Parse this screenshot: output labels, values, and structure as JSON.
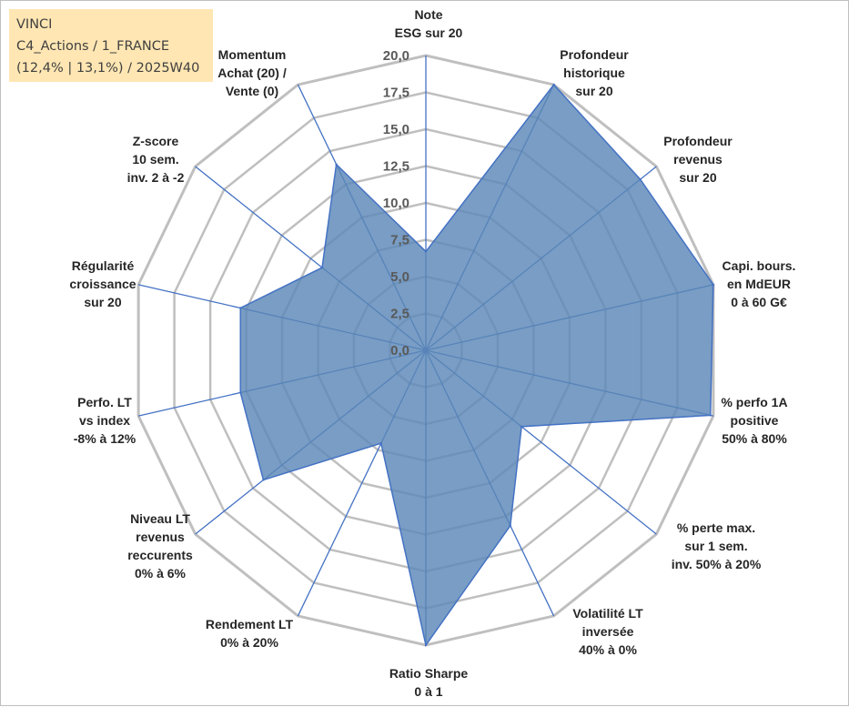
{
  "info_box": {
    "line1": "VINCI",
    "line2": "C4_Actions / 1_FRANCE",
    "line3": "(12,4% | 13,1%) / 2025W40"
  },
  "colors": {
    "fill": "#5b87b7",
    "stroke": "#4472c4",
    "grid": "#bfbfbf",
    "spoke": "#4472c4",
    "info_bg": "#ffe6b3"
  },
  "chart_data": {
    "type": "radar",
    "title": "",
    "rlim": [
      0,
      20
    ],
    "ticks": [
      "0,0",
      "2,5",
      "5,0",
      "7,5",
      "10,0",
      "12,5",
      "15,0",
      "17,5",
      "20,0"
    ],
    "grid": true,
    "categories": [
      "Note|ESG sur 20",
      "Profondeur|historique|sur 20",
      "Profondeur|revenus|sur 20",
      "Capi. bours.|en MdEUR|0 à 60 G€",
      "% perfo 1A|positive|50% à 80%",
      "% perte max.|sur 1 sem.|inv. 50% à 20%",
      "Volatilité LT|inversée|40% à 0%",
      "Ratio Sharpe|0 à 1",
      "Rendement LT|0% à 20%",
      "Niveau LT|revenus|reccurents|0% à 6%",
      "Perfo. LT|vs index|-8% à 12%",
      "Régularité|croissance|sur 20",
      "Z-score|10 sem.|inv. 2 à -2",
      "Momentum|Achat (20) /|Vente (0)"
    ],
    "series": [
      {
        "name": "VINCI",
        "values": [
          6.7,
          20.0,
          18.6,
          20.0,
          19.8,
          8.3,
          13.2,
          20.0,
          7.0,
          14.1,
          12.9,
          12.9,
          9.0,
          14.0
        ]
      }
    ]
  }
}
